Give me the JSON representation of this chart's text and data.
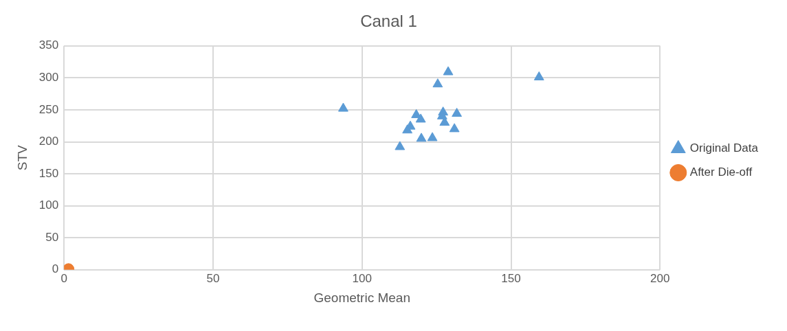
{
  "chart_data": {
    "type": "scatter",
    "title": "Canal 1",
    "xlabel": "Geometric Mean",
    "ylabel": "STV",
    "xlim": [
      0,
      200
    ],
    "xticks": [
      0,
      50,
      100,
      150,
      200
    ],
    "ylim": [
      0,
      350
    ],
    "yticks": [
      0,
      50,
      100,
      150,
      200,
      250,
      300,
      350
    ],
    "grid": true,
    "legend": "right",
    "series": [
      {
        "name": "Original Data",
        "color": "#5b9bd5",
        "marker": "triangle",
        "x": [
          93.7,
          128.9,
          125.4,
          159.4,
          118.2,
          119.7,
          127.2,
          126.9,
          131.8,
          127.7,
          116.2,
          115.2,
          131,
          119.9,
          123.6,
          112.7
        ],
        "values": [
          252,
          309,
          290,
          301,
          242,
          235,
          246,
          240,
          244,
          230,
          224,
          218,
          220,
          205,
          206,
          192
        ]
      },
      {
        "name": "After Die-off",
        "color": "#ed7d31",
        "marker": "circle",
        "x": [
          1.5
        ],
        "values": [
          1
        ]
      }
    ]
  }
}
